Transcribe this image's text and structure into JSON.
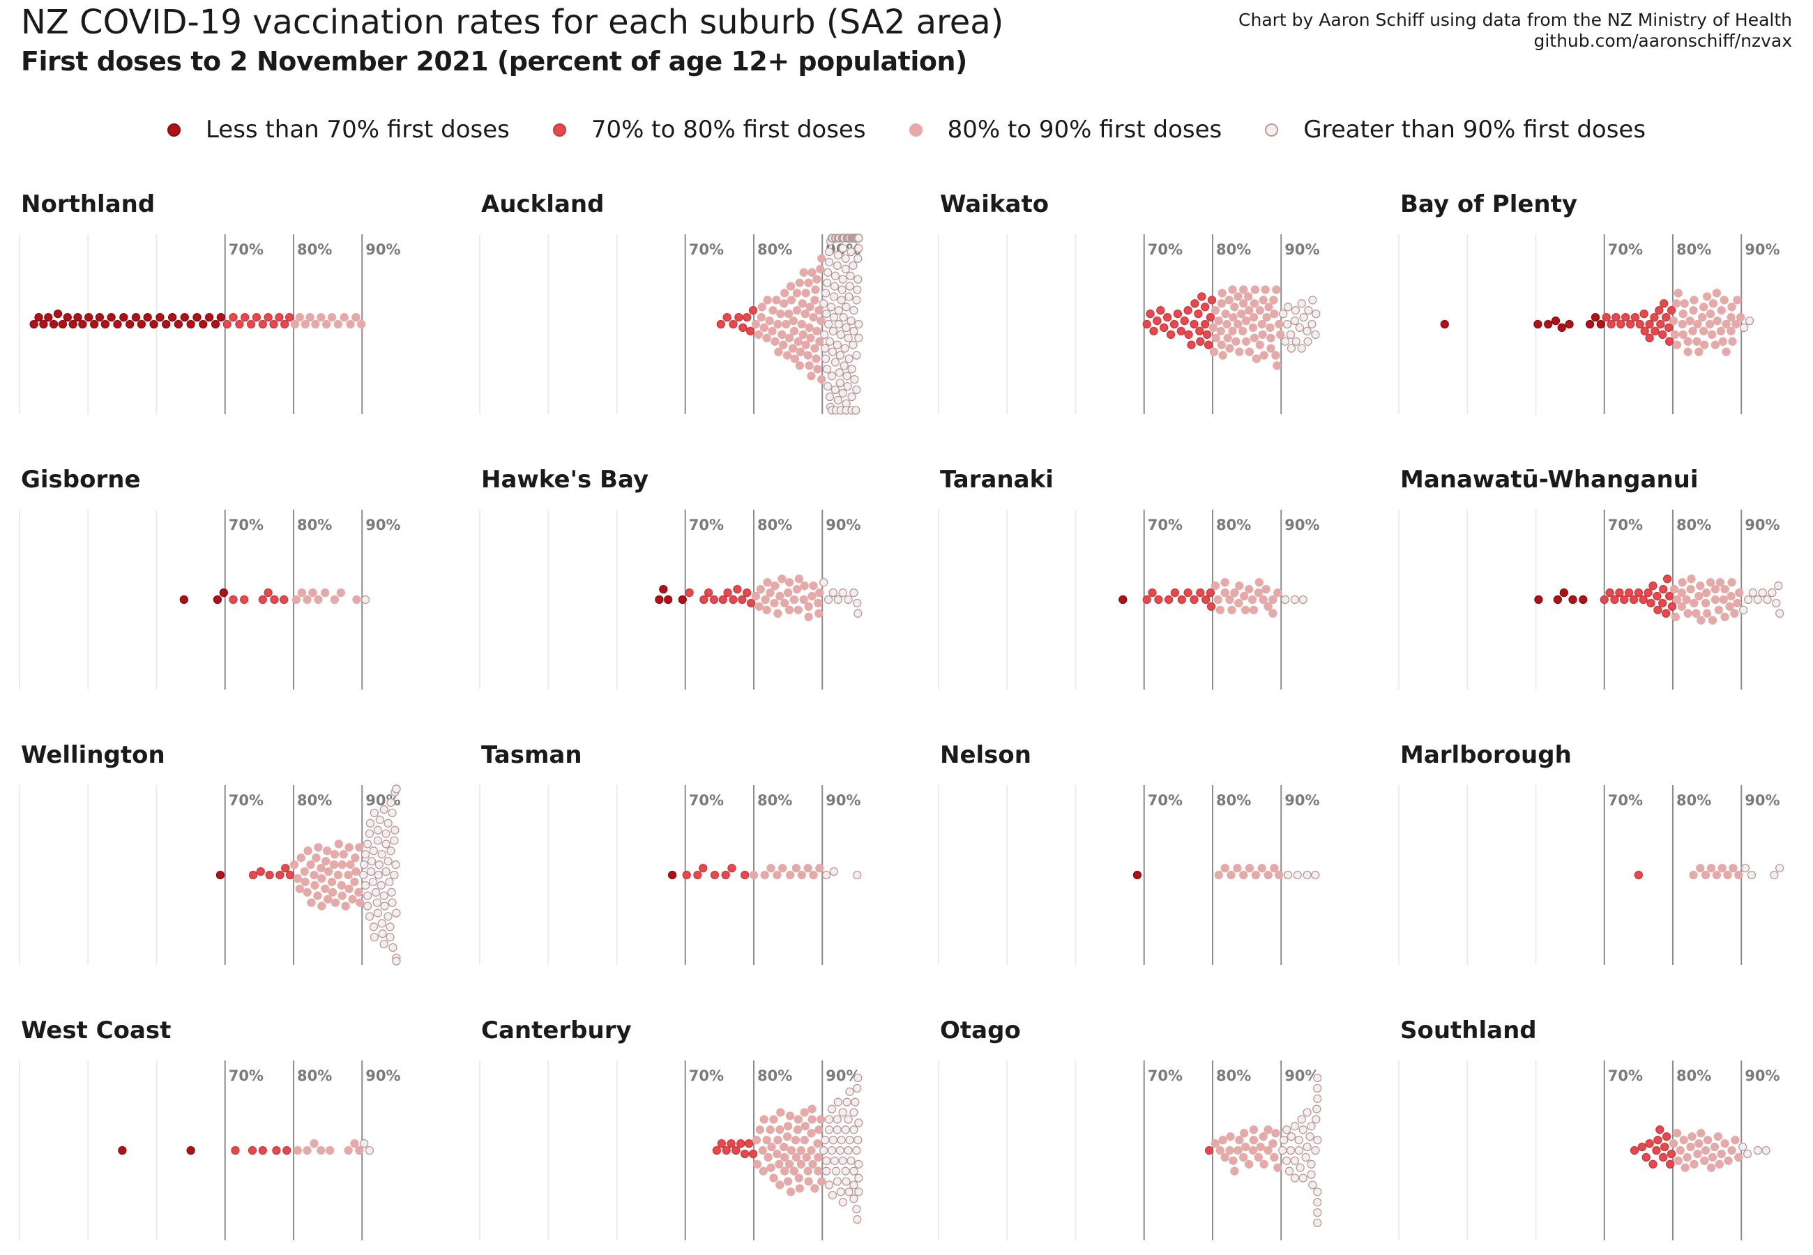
{
  "title": "NZ COVID-19 vaccination rates for each suburb (SA2 area)",
  "subtitle": "First doses to 2 November 2021 (percent of age 12+ population)",
  "caption": {
    "line1": "Chart by Aaron Schiff using data from the NZ Ministry of Health",
    "line2": "github.com/aaronschiff/nzvax"
  },
  "legend": [
    {
      "label": "Less than 70% first doses",
      "fill": "#b01116",
      "stroke": "#8a0c10"
    },
    {
      "label": "70% to 80% first doses",
      "fill": "#e8474c",
      "stroke": "#c93a3e"
    },
    {
      "label": "80% to 90% first doses",
      "fill": "#e5a9a7",
      "stroke": "#e5a9a7"
    },
    {
      "label": "Greater than 90% first doses",
      "fill": "#f6eeee",
      "stroke": "#b79a9a"
    }
  ],
  "colors": {
    "grid": "#ebebeb",
    "reference_line": "#8c8c8c",
    "reference_label": "#7a7a7a"
  },
  "chart_data": {
    "type": "scatter",
    "subtype": "beeswarm small multiples",
    "x_unit": "percent of age 12+ population with first dose",
    "xlim": [
      40,
      97
    ],
    "reference_lines": [
      70,
      80,
      90
    ],
    "reference_labels": [
      "70%",
      "80%",
      "90%"
    ],
    "grid_minor": [
      40,
      50,
      60
    ],
    "facets": [
      {
        "name": "Northland",
        "values": [
          42.1,
          42.8,
          43.5,
          44.2,
          45.0,
          45.6,
          46.3,
          47.0,
          47.8,
          48.5,
          49.2,
          50.1,
          50.9,
          51.7,
          52.5,
          53.4,
          54.3,
          55.2,
          56.1,
          57.0,
          57.8,
          58.7,
          59.6,
          60.5,
          61.4,
          62.3,
          63.2,
          64.1,
          65.0,
          65.9,
          66.8,
          67.7,
          68.6,
          69.4,
          70.3,
          71.2,
          72.1,
          72.9,
          73.8,
          74.6,
          75.5,
          76.3,
          77.1,
          77.9,
          78.7,
          79.4,
          80.2,
          80.9,
          81.7,
          82.4,
          83.2,
          84.0,
          84.8,
          85.6,
          86.5,
          87.4,
          88.3,
          89.1,
          89.9
        ]
      },
      {
        "name": "Auckland",
        "values": [
          75.2,
          76.1,
          77.0,
          77.8,
          78.4,
          79.0,
          79.5,
          79.9,
          80.3,
          80.7,
          81.1,
          81.5,
          81.9,
          82.3,
          82.7,
          83.1,
          83.5,
          83.9,
          84.3,
          84.7,
          85.1,
          85.5,
          85.9,
          86.3,
          86.7,
          87.1,
          87.5,
          87.9,
          88.3,
          88.7,
          89.1,
          89.5,
          89.9,
          81.2,
          82.0,
          82.8,
          83.6,
          84.4,
          85.2,
          86.0,
          86.8,
          87.6,
          88.4,
          89.2,
          83.3,
          84.1,
          84.9,
          85.7,
          86.5,
          87.3,
          88.1,
          88.9,
          89.6,
          84.5,
          85.4,
          86.3,
          87.2,
          88.1,
          88.9,
          89.7,
          85.8,
          86.7,
          87.6,
          88.5,
          89.3,
          87.0,
          88.0,
          89.0,
          89.8,
          88.2,
          89.2,
          89.9,
          90.2,
          90.5,
          90.8,
          91.1,
          91.4,
          91.7,
          92.0,
          92.3,
          92.6,
          92.9,
          93.2,
          93.5,
          93.8,
          94.1,
          94.4,
          94.7,
          95.0,
          95.3,
          90.3,
          90.7,
          91.1,
          91.5,
          91.9,
          92.3,
          92.7,
          93.1,
          93.5,
          93.9,
          94.3,
          94.7,
          95.1,
          90.4,
          90.9,
          91.4,
          91.9,
          92.4,
          92.9,
          93.4,
          93.9,
          94.4,
          94.9,
          90.5,
          91.0,
          91.5,
          92.0,
          92.5,
          93.0,
          93.5,
          94.0,
          94.5,
          95.0,
          90.6,
          91.2,
          91.8,
          92.4,
          93.0,
          93.6,
          94.2,
          94.8,
          90.7,
          91.3,
          91.9,
          92.5,
          93.1,
          93.7,
          94.3,
          94.9,
          90.8,
          91.5,
          92.2,
          92.9,
          93.6,
          94.3,
          95.0,
          91.0,
          91.7,
          92.4,
          93.1,
          93.8,
          94.5,
          91.2,
          91.9,
          92.6,
          93.3,
          94.0,
          94.7,
          91.4,
          92.2,
          93.0,
          93.8,
          94.6,
          91.6,
          92.4,
          93.2,
          94.0,
          94.8,
          92.0,
          92.8,
          93.6,
          94.4,
          92.3,
          93.1,
          93.9,
          94.7,
          92.7,
          93.5,
          94.3,
          93.0,
          93.8,
          94.6,
          93.4,
          94.2,
          95.0,
          93.7,
          94.5,
          94.0,
          94.8,
          94.3,
          95.0,
          94.6,
          95.1,
          94.9,
          95.2,
          95.1,
          95.2,
          95.2,
          95.3,
          95.3,
          95.3,
          95.3,
          95.3,
          95.3,
          95.3,
          95.3,
          95.3,
          95.3,
          95.3,
          95.3,
          95.3,
          95.3,
          95.3,
          95.3,
          95.3,
          95.3,
          95.3,
          95.3,
          95.3,
          95.3,
          95.3,
          95.3,
          95.3
        ]
      },
      {
        "name": "Waikato",
        "values": [
          70.4,
          70.9,
          71.4,
          71.9,
          72.4,
          72.9,
          73.4,
          73.9,
          74.4,
          74.9,
          75.4,
          75.9,
          76.4,
          76.9,
          77.4,
          77.9,
          78.4,
          78.9,
          79.4,
          79.9,
          80.4,
          80.9,
          81.4,
          81.9,
          82.4,
          82.9,
          83.4,
          83.9,
          84.4,
          84.9,
          85.4,
          85.9,
          86.4,
          86.9,
          87.4,
          87.9,
          88.4,
          88.9,
          89.4,
          89.9,
          76.5,
          77.3,
          78.1,
          78.9,
          79.7,
          80.5,
          81.3,
          82.1,
          82.9,
          83.7,
          84.5,
          85.3,
          86.1,
          86.9,
          87.7,
          88.5,
          89.3,
          78.2,
          79.2,
          80.2,
          81.2,
          82.2,
          83.2,
          84.2,
          85.2,
          86.2,
          87.2,
          88.2,
          89.2,
          80.1,
          81.3,
          82.5,
          83.7,
          84.9,
          86.1,
          87.3,
          88.5,
          89.7,
          81.5,
          83.0,
          84.5,
          86.0,
          87.5,
          89.0,
          90.3,
          90.9,
          91.5,
          92.1,
          92.7,
          93.3,
          93.9,
          94.5,
          95.1,
          90.6,
          91.4,
          92.2,
          93.0,
          93.8,
          94.6,
          91.0,
          92.0,
          93.0,
          94.0,
          95.0
        ]
      },
      {
        "name": "Bay of Plenty",
        "values": [
          46.7,
          60.3,
          61.8,
          62.9,
          63.8,
          64.9,
          67.9,
          68.7,
          69.5,
          70.3,
          71.0,
          71.7,
          72.4,
          73.1,
          73.8,
          74.5,
          75.2,
          75.9,
          76.6,
          77.3,
          78.0,
          78.7,
          79.4,
          80.1,
          80.8,
          81.5,
          82.2,
          82.9,
          83.6,
          84.3,
          85.0,
          85.7,
          86.4,
          87.1,
          87.8,
          88.5,
          89.2,
          89.9,
          75.8,
          76.6,
          77.4,
          78.2,
          79.0,
          79.8,
          80.6,
          81.4,
          82.2,
          83.0,
          83.8,
          84.6,
          85.4,
          86.2,
          87.0,
          87.8,
          88.6,
          89.4,
          78.5,
          79.5,
          80.5,
          81.5,
          82.5,
          83.5,
          84.5,
          85.5,
          86.5,
          87.5,
          88.5,
          80.3,
          81.7,
          83.1,
          84.5,
          85.9,
          87.3,
          88.7,
          90.4,
          91.2
        ]
      },
      {
        "name": "Gisborne",
        "values": [
          64.0,
          68.9,
          69.8,
          71.2,
          72.8,
          75.5,
          76.3,
          77.2,
          78.6,
          80.4,
          81.2,
          82.0,
          82.8,
          83.6,
          84.6,
          86.0,
          86.9,
          89.2,
          90.5
        ]
      },
      {
        "name": "Hawke's Bay",
        "values": [
          66.2,
          66.8,
          67.5,
          69.6,
          70.6,
          72.7,
          73.4,
          74.2,
          75.5,
          76.2,
          77.0,
          77.6,
          78.3,
          79.0,
          79.6,
          80.3,
          81.0,
          81.7,
          82.4,
          83.1,
          83.8,
          84.5,
          85.2,
          85.9,
          86.6,
          87.3,
          88.0,
          88.7,
          89.4,
          80.8,
          81.9,
          83.0,
          84.1,
          85.2,
          86.3,
          87.4,
          88.5,
          89.5,
          82.0,
          83.5,
          85.0,
          86.5,
          88.0,
          89.6,
          90.2,
          90.9,
          91.6,
          92.3,
          93.0,
          93.8,
          94.6,
          95.1,
          95.2
        ]
      },
      {
        "name": "Taranaki",
        "values": [
          66.9,
          70.4,
          71.2,
          72.1,
          73.6,
          74.5,
          75.5,
          76.4,
          77.3,
          78.2,
          79.0,
          79.7,
          80.4,
          81.1,
          81.8,
          82.5,
          83.2,
          83.9,
          84.6,
          85.3,
          86.0,
          86.7,
          87.4,
          88.1,
          88.8,
          89.5,
          79.8,
          80.8,
          81.8,
          82.8,
          83.8,
          84.8,
          85.8,
          86.8,
          87.8,
          88.8,
          90.6,
          92.0,
          93.2
        ]
      },
      {
        "name": "Manawatū-Whanganui",
        "values": [
          60.4,
          63.2,
          64.1,
          65.4,
          66.9,
          70.0,
          70.8,
          71.5,
          72.2,
          72.9,
          73.6,
          74.3,
          75.0,
          75.7,
          76.4,
          77.1,
          77.8,
          78.5,
          79.2,
          79.9,
          80.6,
          81.3,
          82.0,
          82.7,
          83.4,
          84.1,
          84.8,
          85.5,
          86.2,
          86.9,
          87.6,
          88.3,
          89.0,
          89.7,
          76.8,
          77.7,
          78.6,
          79.5,
          80.4,
          81.3,
          82.2,
          83.1,
          84.0,
          84.9,
          85.8,
          86.7,
          87.6,
          88.5,
          89.4,
          79.0,
          80.2,
          81.4,
          82.6,
          83.8,
          85.0,
          86.2,
          87.4,
          88.6,
          90.3,
          91.0,
          91.7,
          92.4,
          93.1,
          93.8,
          94.5,
          95.1,
          95.4,
          95.6
        ]
      },
      {
        "name": "Wellington",
        "values": [
          69.3,
          74.1,
          75.2,
          76.5,
          78.0,
          78.8,
          79.5,
          80.1,
          80.6,
          81.1,
          81.6,
          82.1,
          82.6,
          83.1,
          83.6,
          84.1,
          84.6,
          85.1,
          85.6,
          86.1,
          86.6,
          87.1,
          87.6,
          88.1,
          88.6,
          89.1,
          89.6,
          80.9,
          81.7,
          82.5,
          83.3,
          84.1,
          84.9,
          85.7,
          86.5,
          87.3,
          88.1,
          88.9,
          89.7,
          82.0,
          83.0,
          84.0,
          85.0,
          86.0,
          87.0,
          88.0,
          89.0,
          83.5,
          84.7,
          85.9,
          87.1,
          88.3,
          89.5,
          90.2,
          90.5,
          90.8,
          91.1,
          91.4,
          91.7,
          92.0,
          92.3,
          92.6,
          92.9,
          93.2,
          93.5,
          93.8,
          94.1,
          94.4,
          94.7,
          95.0,
          90.3,
          90.8,
          91.3,
          91.8,
          92.3,
          92.8,
          93.3,
          93.8,
          94.3,
          94.8,
          90.5,
          91.1,
          91.7,
          92.3,
          92.9,
          93.5,
          94.1,
          94.7,
          90.8,
          91.6,
          92.4,
          93.2,
          94.0,
          94.8,
          91.2,
          92.2,
          93.2,
          94.2,
          91.8,
          93.0,
          94.2,
          92.5,
          93.8,
          93.5,
          94.4,
          94.5,
          94.9,
          95.0,
          95.0,
          95.0,
          95.0,
          95.0,
          95.0,
          95.0,
          95.0
        ]
      },
      {
        "name": "Tasman",
        "values": [
          68.1,
          70.2,
          71.8,
          72.6,
          74.3,
          75.9,
          76.8,
          78.7,
          80.0,
          81.6,
          82.5,
          83.4,
          84.2,
          85.3,
          86.2,
          87.0,
          87.9,
          88.7,
          89.6,
          90.6,
          91.7,
          95.1
        ]
      },
      {
        "name": "Nelson",
        "values": [
          69.0,
          80.9,
          81.8,
          82.7,
          83.6,
          84.5,
          85.4,
          86.3,
          87.2,
          88.1,
          89.0,
          89.7,
          91.0,
          92.4,
          93.8,
          95.0
        ]
      },
      {
        "name": "Marlborough",
        "values": [
          75.0,
          83.0,
          84.0,
          84.8,
          85.6,
          86.4,
          87.2,
          88.0,
          88.8,
          89.6,
          90.6,
          91.5,
          94.8,
          95.6
        ]
      },
      {
        "name": "West Coast",
        "values": [
          55.0,
          65.0,
          71.5,
          74.0,
          75.5,
          77.5,
          79.0,
          80.6,
          82.0,
          83.0,
          84.0,
          85.3,
          88.0,
          88.9,
          89.6,
          90.3,
          91.1
        ]
      },
      {
        "name": "Canterbury",
        "values": [
          74.6,
          75.3,
          76.0,
          76.7,
          77.4,
          78.1,
          78.7,
          79.3,
          79.9,
          80.4,
          80.9,
          81.4,
          81.9,
          82.4,
          82.9,
          83.4,
          83.9,
          84.4,
          84.9,
          85.4,
          85.9,
          86.4,
          86.9,
          87.4,
          87.9,
          88.4,
          88.9,
          89.4,
          89.9,
          80.5,
          81.3,
          82.1,
          82.9,
          83.7,
          84.5,
          85.3,
          86.1,
          86.9,
          87.7,
          88.5,
          89.3,
          81.5,
          82.5,
          83.5,
          84.5,
          85.5,
          86.5,
          87.5,
          88.5,
          89.5,
          82.6,
          83.8,
          85.0,
          86.2,
          87.4,
          88.6,
          89.8,
          83.8,
          85.2,
          86.6,
          88.0,
          89.4,
          85.0,
          86.7,
          88.4,
          90.2,
          90.6,
          91.0,
          91.4,
          91.8,
          92.2,
          92.6,
          93.0,
          93.4,
          93.8,
          94.2,
          94.6,
          95.0,
          90.4,
          91.0,
          91.6,
          92.2,
          92.8,
          93.4,
          94.0,
          94.6,
          95.1,
          90.6,
          91.4,
          92.2,
          93.0,
          93.8,
          94.6,
          91.0,
          92.0,
          93.0,
          94.0,
          95.0,
          91.5,
          92.7,
          93.9,
          92.3,
          93.6,
          94.8,
          93.5,
          94.6,
          94.6,
          95.1,
          95.2,
          95.2,
          95.3,
          95.3,
          95.3,
          95.3
        ]
      },
      {
        "name": "Otago",
        "values": [
          79.5,
          80.4,
          81.1,
          81.8,
          82.5,
          83.2,
          83.9,
          84.6,
          85.3,
          86.0,
          86.7,
          87.4,
          88.1,
          88.8,
          89.5,
          81.5,
          82.6,
          83.7,
          84.8,
          85.9,
          87.0,
          88.1,
          89.2,
          83.0,
          84.5,
          86.0,
          87.5,
          89.0,
          90.2,
          90.8,
          91.4,
          92.0,
          92.6,
          93.2,
          93.8,
          94.4,
          95.0,
          90.4,
          91.2,
          92.0,
          92.8,
          93.6,
          94.4,
          95.1,
          90.8,
          92.0,
          93.2,
          94.4,
          91.5,
          93.0,
          94.6,
          92.6,
          94.2,
          93.8,
          95.2,
          95.3,
          95.3,
          95.3,
          95.3,
          95.3,
          95.3,
          95.3,
          95.3
        ]
      },
      {
        "name": "Southland",
        "values": [
          74.4,
          75.5,
          76.1,
          76.6,
          77.1,
          77.6,
          78.1,
          78.6,
          79.1,
          79.6,
          80.1,
          80.6,
          81.1,
          81.6,
          82.1,
          82.6,
          83.1,
          83.6,
          84.1,
          84.6,
          85.1,
          85.6,
          86.1,
          86.6,
          87.1,
          87.6,
          88.1,
          88.6,
          89.1,
          89.6,
          77.8,
          78.8,
          79.8,
          80.8,
          81.8,
          82.8,
          83.8,
          84.8,
          85.8,
          86.8,
          90.2,
          90.9,
          92.4,
          93.6
        ]
      }
    ]
  }
}
